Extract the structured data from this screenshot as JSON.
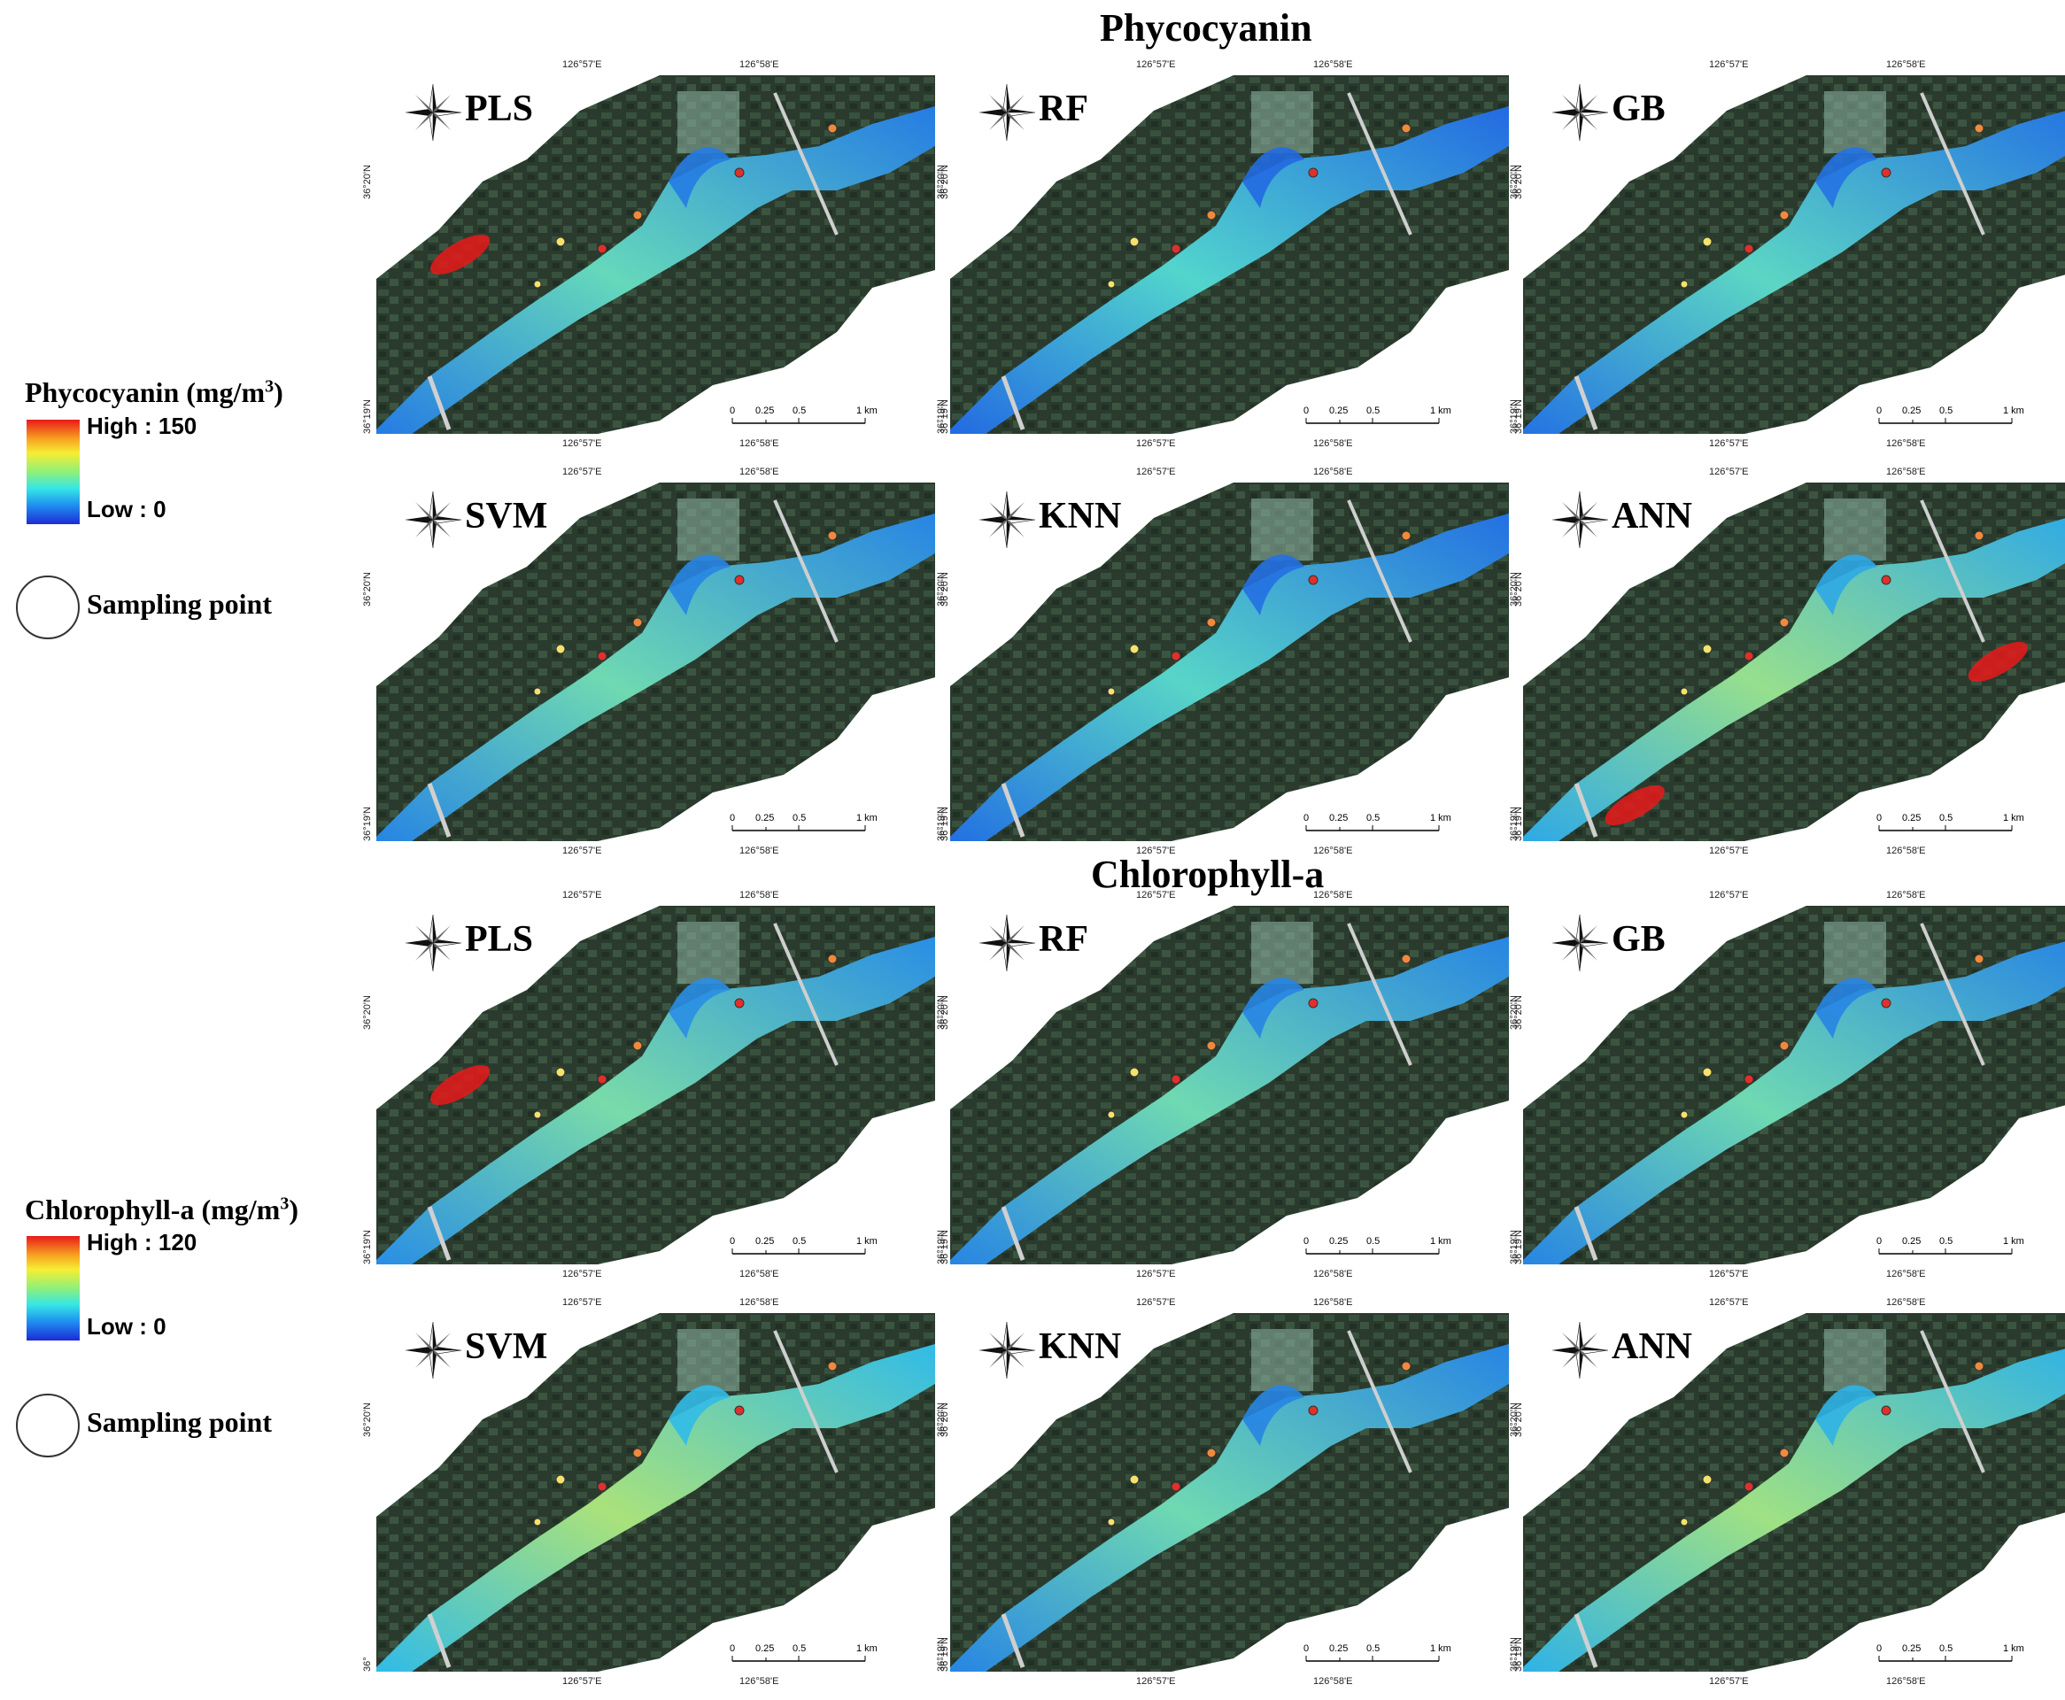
{
  "sections": [
    {
      "title": "Phycocyanin",
      "legend": {
        "title": "Phycocyanin (mg/m",
        "sup": "3",
        "title_end": ")",
        "high": "High : 150",
        "low": "Low : 0"
      },
      "panels": [
        {
          "model": "PLS",
          "intensity": 0.25,
          "hotspots": [
            [
              0.15,
              0.5
            ]
          ]
        },
        {
          "model": "RF",
          "intensity": 0.15,
          "hotspots": []
        },
        {
          "model": "GB",
          "intensity": 0.2,
          "hotspots": []
        },
        {
          "model": "SVM",
          "intensity": 0.3,
          "hotspots": []
        },
        {
          "model": "KNN",
          "intensity": 0.18,
          "hotspots": []
        },
        {
          "model": "ANN",
          "intensity": 0.5,
          "hotspots": [
            [
              0.2,
              0.9
            ],
            [
              0.85,
              0.5
            ]
          ]
        }
      ]
    },
    {
      "title": "Chlorophyll-a",
      "legend": {
        "title": "Chlorophyll-a (mg/m",
        "sup": "3",
        "title_end": ")",
        "high": "High : 120",
        "low": "Low : 0"
      },
      "panels": [
        {
          "model": "PLS",
          "intensity": 0.35,
          "hotspots": [
            [
              0.15,
              0.5
            ]
          ]
        },
        {
          "model": "RF",
          "intensity": 0.3,
          "hotspots": []
        },
        {
          "model": "GB",
          "intensity": 0.3,
          "hotspots": []
        },
        {
          "model": "SVM",
          "intensity": 0.6,
          "hotspots": []
        },
        {
          "model": "KNN",
          "intensity": 0.3,
          "hotspots": []
        },
        {
          "model": "ANN",
          "intensity": 0.55,
          "hotspots": []
        }
      ]
    }
  ],
  "sampling_label": "Sampling point",
  "coords": {
    "lon1": "126°57'E",
    "lon2": "126°58'E",
    "lat_top": "36°20'N",
    "lat_bottom": "36°19'N",
    "lat_bottom_last": "36°"
  },
  "scale": {
    "t0": "0",
    "t1": "0.25",
    "t2": "0.5",
    "t3": "1 km"
  },
  "compass": {
    "n": "N",
    "s": "S",
    "e": "E",
    "w": "W"
  },
  "colors": {
    "land": "#2a3b2e",
    "water_low": "#1d4fe0",
    "water_mid": "#35d0e8",
    "water_high": "#f6ee33",
    "hot": "#e81a1a",
    "sample_yellow": "#f4e36a",
    "sample_orange": "#f08a3a",
    "sample_red": "#e0302a"
  }
}
